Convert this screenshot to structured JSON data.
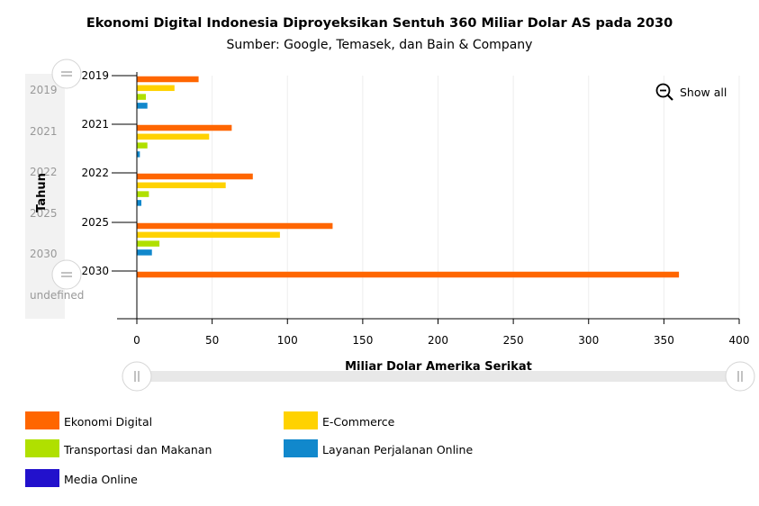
{
  "chart_data": {
    "type": "bar",
    "orientation": "horizontal",
    "title": "Ekonomi Digital Indonesia Diproyeksikan Sentuh 360 Miliar Dolar AS pada 2030",
    "subtitle": "Sumber: Google, Temasek, dan Bain & Company",
    "xlabel": "Miliar Dolar Amerika Serikat",
    "ylabel": "Tahun",
    "categories": [
      "2019",
      "2021",
      "2022",
      "2025",
      "2030"
    ],
    "xlim": [
      0,
      400
    ],
    "xticks": [
      0,
      50,
      100,
      150,
      200,
      250,
      300,
      350,
      400
    ],
    "grid": true,
    "legend_position": "bottom",
    "series": [
      {
        "name": "Ekonomi Digital",
        "color": "#ff6600",
        "values": [
          41,
          63,
          77,
          130,
          360
        ]
      },
      {
        "name": "E-Commerce",
        "color": "#ffd200",
        "values": [
          25,
          48,
          59,
          95,
          null
        ]
      },
      {
        "name": "Transportasi dan Makanan",
        "color": "#b0e000",
        "values": [
          6,
          7,
          8,
          15,
          null
        ]
      },
      {
        "name": "Layanan Perjalanan Online",
        "color": "#1188cc",
        "values": [
          7,
          2,
          3,
          10,
          null
        ]
      },
      {
        "name": "Media Online",
        "color": "#2211cc",
        "values": [
          null,
          null,
          null,
          null,
          null
        ]
      }
    ],
    "scrollbar_labels": [
      "2019",
      "2021",
      "2022",
      "2025",
      "2030",
      "undefined"
    ]
  },
  "controls": {
    "show_all_label": "Show all"
  }
}
